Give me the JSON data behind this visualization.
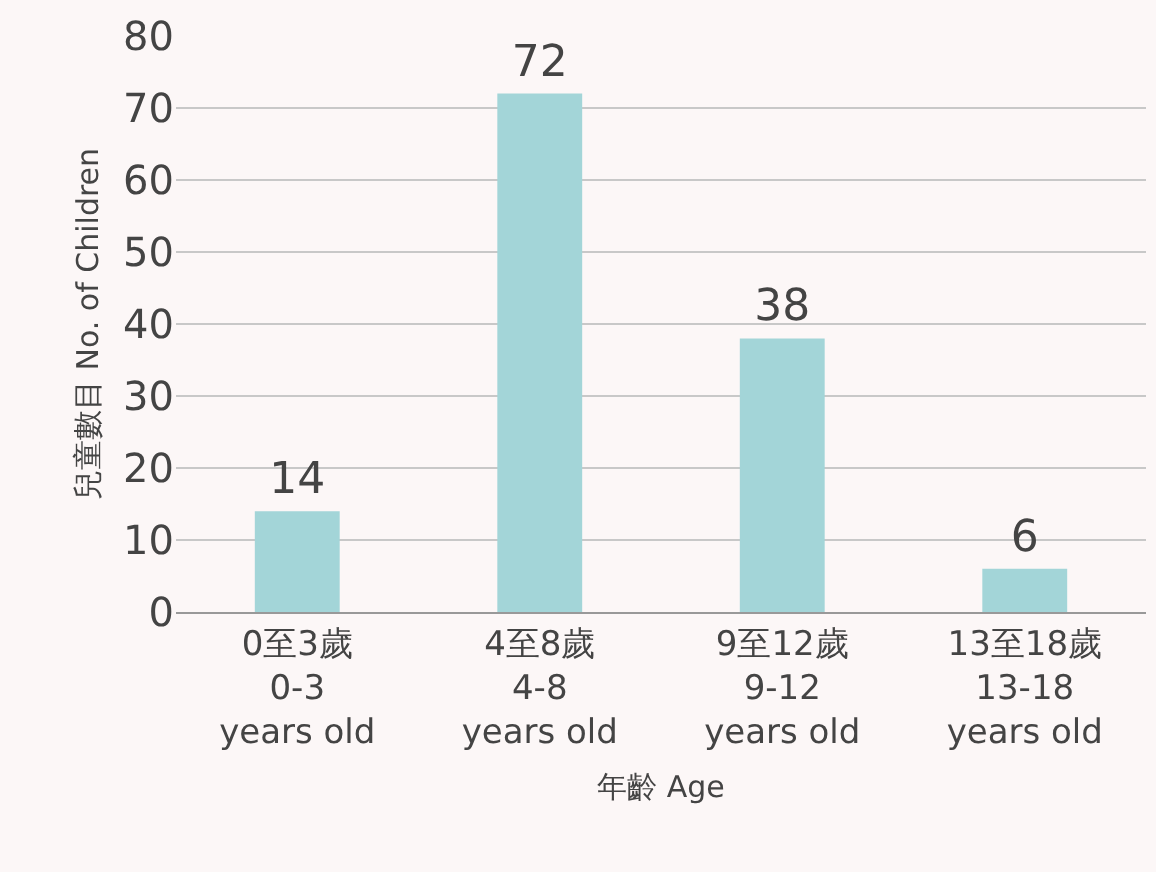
{
  "chart_data": {
    "type": "bar",
    "xlabel": "年齡 Age",
    "ylabel": "兒童數目 No. of Children",
    "categories": [
      "0至3歲\n0-3\nyears old",
      "4至8歲\n4-8\nyears old",
      "9至12歲\n9-12\nyears old",
      "13至18歲\n13-18\nyears old"
    ],
    "values": [
      14,
      72,
      38,
      6
    ],
    "color": "#a3d5d8",
    "data_labels": true,
    "ylim": [
      0,
      80
    ],
    "yticks": [
      0,
      10,
      20,
      30,
      40,
      50,
      60,
      70,
      80
    ],
    "grid": "y"
  }
}
